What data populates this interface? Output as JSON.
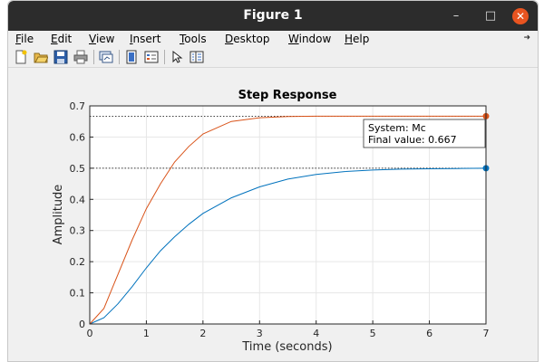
{
  "window": {
    "title": "Figure 1",
    "controls": [
      "minimize-icon",
      "maximize-icon",
      "close-icon"
    ]
  },
  "menubar": {
    "items": [
      {
        "label": "File",
        "mnemonic": "F"
      },
      {
        "label": "Edit",
        "mnemonic": "E"
      },
      {
        "label": "View",
        "mnemonic": "V"
      },
      {
        "label": "Insert",
        "mnemonic": "I"
      },
      {
        "label": "Tools",
        "mnemonic": "T"
      },
      {
        "label": "Desktop",
        "mnemonic": "D"
      },
      {
        "label": "Window",
        "mnemonic": "W"
      },
      {
        "label": "Help",
        "mnemonic": "H"
      }
    ]
  },
  "toolbar": {
    "buttons": [
      "new-figure-icon",
      "open-file-icon",
      "save-icon",
      "print-icon",
      "link-plot-icon",
      "insert-colorbar-icon",
      "insert-legend-icon",
      "edit-plot-icon",
      "property-inspector-icon"
    ]
  },
  "chart_data": {
    "type": "line",
    "title": "Step Response",
    "xlabel": "Time (seconds)",
    "ylabel": "Amplitude",
    "xlim": [
      0,
      7
    ],
    "ylim": [
      0,
      0.7
    ],
    "xticks": [
      0,
      1,
      2,
      3,
      4,
      5,
      6,
      7
    ],
    "yticks": [
      0,
      0.1,
      0.2,
      0.3,
      0.4,
      0.5,
      0.6,
      0.7
    ],
    "grid": true,
    "series": [
      {
        "color": "#0072BD",
        "final_value": 0.5,
        "x": [
          0,
          0.25,
          0.5,
          0.75,
          1,
          1.25,
          1.5,
          1.75,
          2,
          2.5,
          3,
          3.5,
          4,
          4.5,
          5,
          5.5,
          6,
          6.5,
          7
        ],
        "y": [
          0,
          0.02,
          0.065,
          0.12,
          0.18,
          0.235,
          0.28,
          0.32,
          0.355,
          0.405,
          0.44,
          0.465,
          0.48,
          0.489,
          0.494,
          0.497,
          0.498,
          0.499,
          0.5
        ]
      },
      {
        "name": "Mc",
        "color": "#D95319",
        "final_value": 0.667,
        "x": [
          0,
          0.25,
          0.5,
          0.75,
          1,
          1.25,
          1.5,
          1.75,
          2,
          2.5,
          3,
          3.5,
          4,
          4.5,
          5,
          5.5,
          6,
          6.5,
          7
        ],
        "y": [
          0,
          0.05,
          0.16,
          0.27,
          0.37,
          0.45,
          0.52,
          0.57,
          0.61,
          0.65,
          0.662,
          0.666,
          0.667,
          0.667,
          0.667,
          0.667,
          0.667,
          0.667,
          0.667
        ]
      }
    ],
    "annotation": {
      "line1": "System: Mc",
      "line2": "Final value: 0.667"
    }
  }
}
